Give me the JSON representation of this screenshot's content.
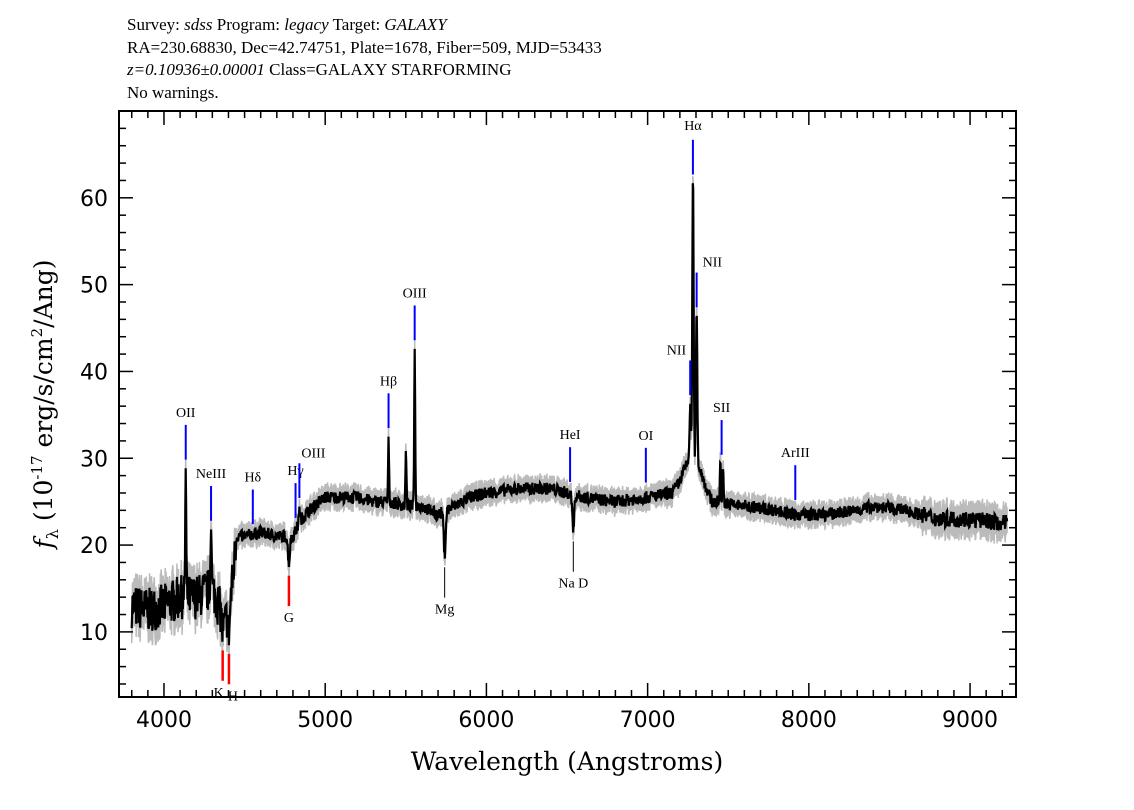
{
  "header": {
    "line1": "Survey: sdss Program: legacy Target: GALAXY",
    "survey": "sdss",
    "program": "legacy",
    "target": "GALAXY",
    "line2": "RA=230.68830, Dec=42.74751, Plate=1678, Fiber=509, MJD=53433",
    "redshift": "z=0.10936±0.00001",
    "class": "Class=GALAXY STARFORMING",
    "warnings": "No warnings."
  },
  "chart_data": {
    "type": "line",
    "title": "",
    "xlabel": "Wavelength (Angstroms)",
    "ylabel": "f_λ (10^-17 erg/s/cm^2/Ang)",
    "xlim": [
      3721,
      9285
    ],
    "ylim": [
      2.5,
      70
    ],
    "xticks": [
      4000,
      5000,
      6000,
      7000,
      8000,
      9000
    ],
    "yticks": [
      10,
      20,
      30,
      40,
      50,
      60
    ],
    "grid": false,
    "colors": {
      "flux": "#000000",
      "error": "#bbbbbb",
      "emission": "#0000ff",
      "absorption_em": "#000000",
      "absorption": "#ff0000"
    },
    "continuum": [
      [
        3800,
        13
      ],
      [
        3900,
        12.5
      ],
      [
        4000,
        13
      ],
      [
        4100,
        14
      ],
      [
        4200,
        14
      ],
      [
        4300,
        15
      ],
      [
        4340,
        13
      ],
      [
        4380,
        11
      ],
      [
        4420,
        15
      ],
      [
        4450,
        21
      ],
      [
        4500,
        21
      ],
      [
        4600,
        21.5
      ],
      [
        4700,
        21
      ],
      [
        4800,
        21
      ],
      [
        4850,
        23
      ],
      [
        4900,
        24
      ],
      [
        5000,
        25.5
      ],
      [
        5100,
        25.5
      ],
      [
        5200,
        25.5
      ],
      [
        5300,
        25
      ],
      [
        5400,
        25
      ],
      [
        5500,
        24.5
      ],
      [
        5600,
        24.5
      ],
      [
        5700,
        23.5
      ],
      [
        5800,
        24.5
      ],
      [
        5900,
        25.5
      ],
      [
        6000,
        26
      ],
      [
        6200,
        26.5
      ],
      [
        6400,
        26.5
      ],
      [
        6600,
        25.5
      ],
      [
        6800,
        25
      ],
      [
        7000,
        25.5
      ],
      [
        7150,
        26
      ],
      [
        7220,
        27.5
      ],
      [
        7340,
        27
      ],
      [
        7400,
        25
      ],
      [
        7600,
        24.5
      ],
      [
        7800,
        24
      ],
      [
        7900,
        23.5
      ],
      [
        8100,
        23.5
      ],
      [
        8300,
        24
      ],
      [
        8400,
        24.5
      ],
      [
        8600,
        24
      ],
      [
        8800,
        23
      ],
      [
        9000,
        23
      ],
      [
        9230,
        22.5
      ]
    ],
    "emission_peaks": [
      [
        4135,
        28.5
      ],
      [
        4292,
        24
      ],
      [
        4840,
        24.5
      ],
      [
        5393,
        32
      ],
      [
        5501,
        31
      ],
      [
        5555,
        43
      ],
      [
        7264,
        33
      ],
      [
        7281,
        60
      ],
      [
        7304,
        45
      ],
      [
        7451,
        30
      ],
      [
        7467,
        29.5
      ]
    ],
    "absorption_dips": [
      [
        4364,
        10
      ],
      [
        4403,
        10
      ],
      [
        4775,
        18
      ],
      [
        5741,
        19
      ],
      [
        6539,
        22
      ]
    ],
    "lines": [
      {
        "label": "OII",
        "wave": 4135,
        "type": "emission",
        "side": "above"
      },
      {
        "label": "NeIII",
        "wave": 4292,
        "type": "emission",
        "side": "above"
      },
      {
        "label": "Hδ",
        "wave": 4551,
        "type": "emission",
        "side": "above"
      },
      {
        "label": "Hγ",
        "wave": 4816,
        "type": "emission",
        "side": "above"
      },
      {
        "label": "OIII",
        "wave": 4840,
        "type": "emission",
        "side": "above"
      },
      {
        "label": "Hβ",
        "wave": 5393,
        "type": "emission",
        "side": "above"
      },
      {
        "label": "OIII",
        "wave": 5555,
        "type": "emission",
        "side": "above"
      },
      {
        "label": "HeI",
        "wave": 6519,
        "type": "emission",
        "side": "above"
      },
      {
        "label": "OI",
        "wave": 6989,
        "type": "emission",
        "side": "above"
      },
      {
        "label": "NII",
        "wave": 7264,
        "type": "emission",
        "side": "above"
      },
      {
        "label": "Hα",
        "wave": 7281,
        "type": "emission",
        "side": "above"
      },
      {
        "label": "NII",
        "wave": 7304,
        "type": "emission",
        "side": "above"
      },
      {
        "label": "SII",
        "wave": 7459,
        "type": "emission",
        "side": "above"
      },
      {
        "label": "ArIII",
        "wave": 7916,
        "type": "emission",
        "side": "above"
      },
      {
        "label": "K",
        "wave": 4364,
        "type": "absorption",
        "side": "below"
      },
      {
        "label": "H",
        "wave": 4403,
        "type": "absorption",
        "side": "below"
      },
      {
        "label": "G",
        "wave": 4775,
        "type": "absorption",
        "side": "below"
      },
      {
        "label": "Mg",
        "wave": 5741,
        "type": "absorption",
        "side": "below"
      },
      {
        "label": "Na D",
        "wave": 6539,
        "type": "absorption",
        "side": "below"
      }
    ]
  }
}
